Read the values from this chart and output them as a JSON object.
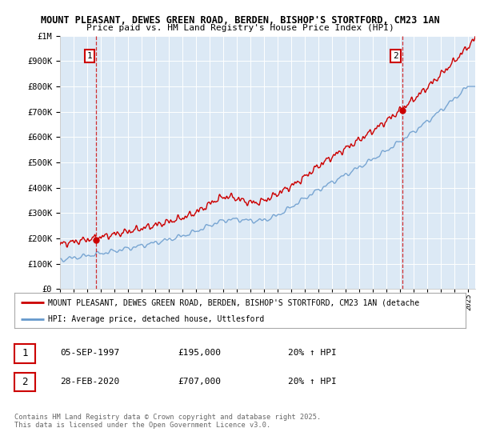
{
  "title1": "MOUNT PLEASANT, DEWES GREEN ROAD, BERDEN, BISHOP'S STORTFORD, CM23 1AN",
  "title2": "Price paid vs. HM Land Registry's House Price Index (HPI)",
  "bg_color": "#ffffff",
  "plot_bg_color": "#dce9f5",
  "grid_color": "#ffffff",
  "red_line_color": "#cc0000",
  "blue_line_color": "#6699cc",
  "ann1_x": 1997.67,
  "ann2_x": 2020.15,
  "legend_line1": "MOUNT PLEASANT, DEWES GREEN ROAD, BERDEN, BISHOP'S STORTFORD, CM23 1AN (detache",
  "legend_line2": "HPI: Average price, detached house, Uttlesford",
  "footer1": "Contains HM Land Registry data © Crown copyright and database right 2025.",
  "footer2": "This data is licensed under the Open Government Licence v3.0.",
  "table_row1": {
    "num": "1",
    "date": "05-SEP-1997",
    "price": "£195,000",
    "pct": "20% ↑ HPI"
  },
  "table_row2": {
    "num": "2",
    "date": "28-FEB-2020",
    "price": "£707,000",
    "pct": "20% ↑ HPI"
  },
  "ylim_max": 1000000,
  "ylim_min": 0,
  "xmin": 1995.0,
  "xmax": 2025.5
}
